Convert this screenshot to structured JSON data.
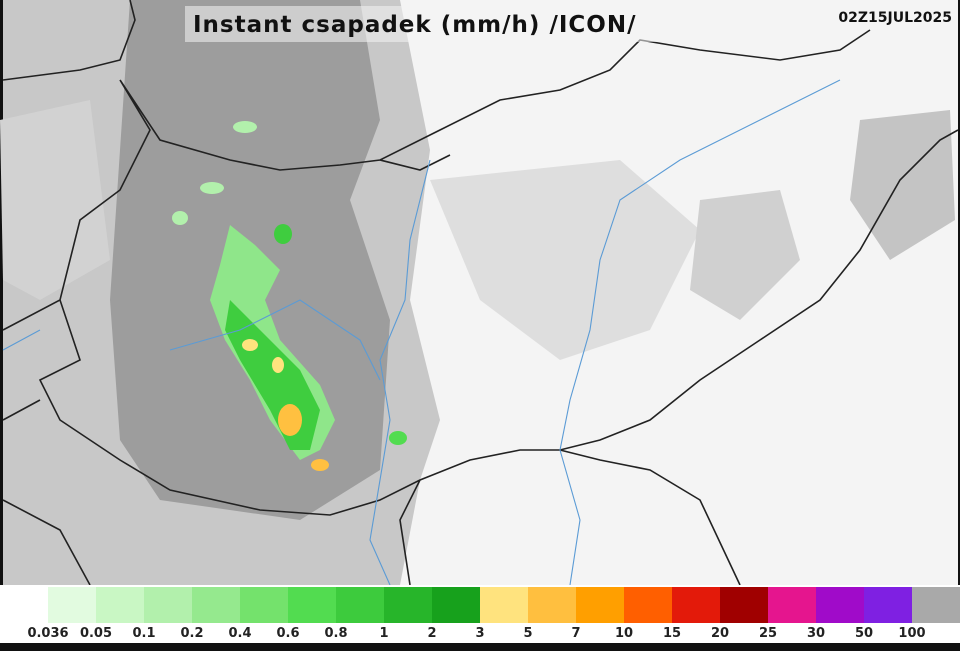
{
  "header": {
    "title": "Instant csapadek (mm/h) /ICON/",
    "timestamp": "02Z15JUL2025"
  },
  "legend": {
    "colors": [
      "#ffffff",
      "#e2fbe0",
      "#c9f7c4",
      "#b2f0ac",
      "#95e98e",
      "#74e26c",
      "#52dc50",
      "#3dcb3d",
      "#27b52a",
      "#17a11c",
      "#ffe37e",
      "#ffbf3f",
      "#ff9f00",
      "#ff5f00",
      "#e31a0a",
      "#a00000",
      "#e5158e",
      "#a00bc9",
      "#7f20e2",
      "#a9a9a9"
    ],
    "labels": [
      "0.036",
      "0.05",
      "0.1",
      "0.2",
      "0.4",
      "0.6",
      "0.8",
      "1",
      "2",
      "3",
      "5",
      "7",
      "10",
      "15",
      "20",
      "25",
      "30",
      "50",
      "100"
    ]
  }
}
